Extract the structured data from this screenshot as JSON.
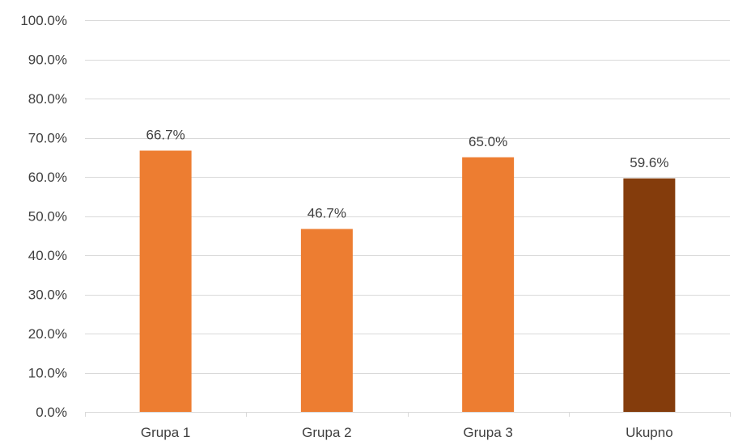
{
  "chart_data": {
    "type": "bar",
    "title": "",
    "xlabel": "",
    "ylabel": "",
    "categories": [
      "Grupa 1",
      "Grupa 2",
      "Grupa 3",
      "Ukupno"
    ],
    "values": [
      66.7,
      46.7,
      65.0,
      59.6
    ],
    "value_labels": [
      "66.7%",
      "46.7%",
      "65.0%",
      "59.6%"
    ],
    "ylim": [
      0,
      100
    ],
    "y_ticks": [
      0,
      10,
      20,
      30,
      40,
      50,
      60,
      70,
      80,
      90,
      100
    ],
    "y_tick_labels": [
      "0.0%",
      "10.0%",
      "20.0%",
      "30.0%",
      "40.0%",
      "50.0%",
      "60.0%",
      "70.0%",
      "80.0%",
      "90.0%",
      "100.0%"
    ],
    "bar_colors": [
      "#ed7d31",
      "#ed7d31",
      "#ed7d31",
      "#843c0c"
    ],
    "grid": true,
    "legend": "none"
  }
}
